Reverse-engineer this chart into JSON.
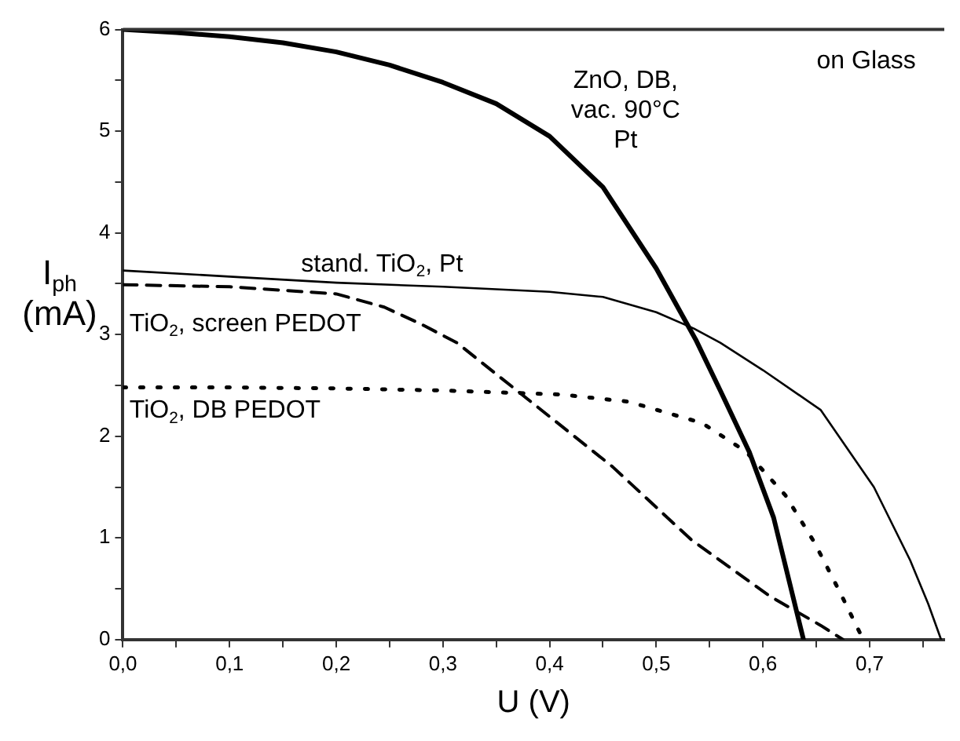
{
  "chart_data": {
    "type": "line",
    "xlabel": "U (V)",
    "ylabel": "I$_{ph}$ (mA)",
    "xlim": [
      0,
      0.77
    ],
    "ylim": [
      0,
      6
    ],
    "xticks": [
      {
        "value": 0,
        "label": "0,0"
      },
      {
        "value": 0.05,
        "label": null
      },
      {
        "value": 0.1,
        "label": "0,1"
      },
      {
        "value": 0.15,
        "label": null
      },
      {
        "value": 0.2,
        "label": "0,2"
      },
      {
        "value": 0.25,
        "label": null
      },
      {
        "value": 0.3,
        "label": "0,3"
      },
      {
        "value": 0.35,
        "label": null
      },
      {
        "value": 0.4,
        "label": "0,4"
      },
      {
        "value": 0.45,
        "label": null
      },
      {
        "value": 0.5,
        "label": "0,5"
      },
      {
        "value": 0.55,
        "label": null
      },
      {
        "value": 0.6,
        "label": "0,6"
      },
      {
        "value": 0.65,
        "label": null
      },
      {
        "value": 0.7,
        "label": "0,7"
      },
      {
        "value": 0.75,
        "label": null
      }
    ],
    "yticks": [
      0,
      {
        "value": 0.5,
        "label": null
      },
      1,
      {
        "value": 1.5,
        "label": null
      },
      2,
      {
        "value": 2.5,
        "label": null
      },
      3,
      {
        "value": 3.5,
        "label": null
      },
      4,
      {
        "value": 4.5,
        "label": null
      },
      5,
      {
        "value": 5.5,
        "label": null
      },
      6
    ],
    "grid": false,
    "legend": false,
    "marker": "none",
    "series": [
      {
        "color": "#000000",
        "line_style": "solid",
        "x": [
          0,
          0.05,
          0.1,
          0.15,
          0.2,
          0.25,
          0.3,
          0.35,
          0.4,
          0.45,
          0.5,
          0.537,
          0.56,
          0.587,
          0.61,
          0.638
        ],
        "values": [
          6,
          5.97,
          5.93,
          5.87,
          5.78,
          5.65,
          5.48,
          5.27,
          4.95,
          4.45,
          3.65,
          2.95,
          2.45,
          1.85,
          1.2,
          0
        ]
      },
      {
        "color": "#000000",
        "line_style": "solid",
        "x": [
          0,
          0.1,
          0.2,
          0.3,
          0.4,
          0.45,
          0.5,
          0.535,
          0.56,
          0.6,
          0.654,
          0.704,
          0.738,
          0.755,
          0.767
        ],
        "values": [
          3.63,
          3.57,
          3.51,
          3.47,
          3.42,
          3.37,
          3.22,
          3.06,
          2.92,
          2.65,
          2.26,
          1.5,
          0.78,
          0.35,
          0
        ]
      },
      {
        "color": "#000000",
        "line_style": "dashed",
        "x": [
          0,
          0.1,
          0.2,
          0.245,
          0.28,
          0.313,
          0.386,
          0.459,
          0.533,
          0.606,
          0.654,
          0.675
        ],
        "values": [
          3.49,
          3.47,
          3.4,
          3.27,
          3.1,
          2.92,
          2.31,
          1.7,
          0.98,
          0.43,
          0.14,
          0
        ]
      },
      {
        "color": "#000000",
        "line_style": "dotted",
        "x": [
          0,
          0.1,
          0.2,
          0.3,
          0.411,
          0.474,
          0.543,
          0.584,
          0.621,
          0.648,
          0.672,
          0.694
        ],
        "values": [
          2.48,
          2.48,
          2.47,
          2.45,
          2.41,
          2.34,
          2.13,
          1.85,
          1.42,
          0.96,
          0.47,
          0
        ]
      }
    ],
    "annotations": [
      "ZnO, DB,\nvac. 90°C\nPt",
      "stand. TiO$_{2}$, Pt",
      "TiO$_{2}$, screen PEDOT",
      "TiO$_{2}$, DB PEDOT",
      "on Glass"
    ]
  }
}
